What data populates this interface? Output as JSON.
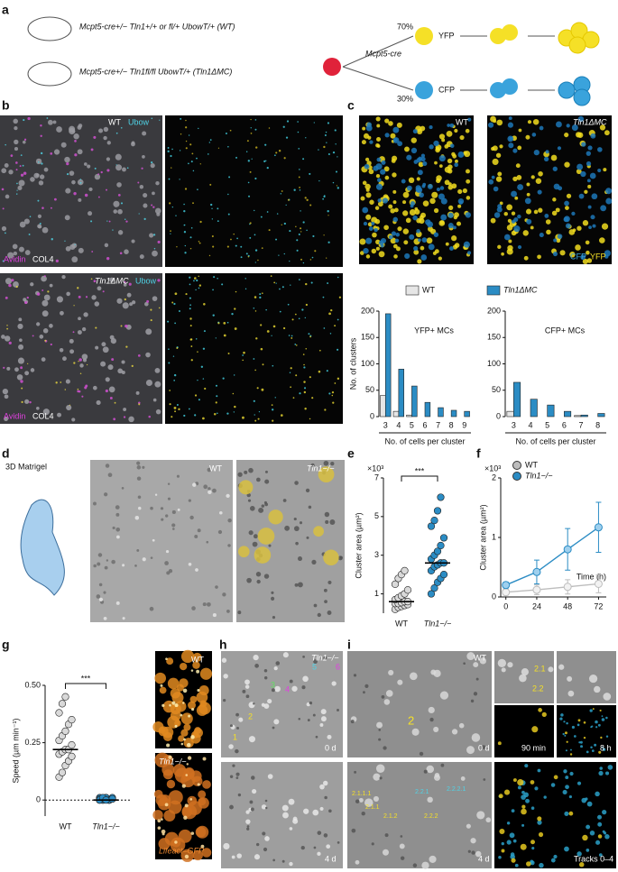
{
  "panel_labels": [
    "a",
    "b",
    "c",
    "d",
    "e",
    "f",
    "g",
    "h",
    "i"
  ],
  "a": {
    "genotype_wt": "Mcpt5-cre+/− Tln1+/+ or fl/+ UbowT/+ (WT)",
    "genotype_ko": "Mcpt5-cre+/− Tln1fl/fl UbowT/+ (Tln1ΔMC)",
    "driver": "Mcpt5-cre",
    "pct_yfp": "70%",
    "pct_cfp": "30%",
    "yfp": "YFP",
    "cfp": "CFP"
  },
  "b": {
    "wt_label": "WT",
    "ubow": "Ubow",
    "ko_label": "Tln1ΔMC",
    "avidin": "Avidin",
    "col4": "COL4"
  },
  "c": {
    "wt_label": "WT",
    "ko_label": "Tln1ΔMC",
    "cfp": "CFP",
    "yfp": "YFP"
  },
  "d": {
    "matrigel": "3D Matrigel",
    "wt_label": "WT",
    "ko_label": "Tln1−/−"
  },
  "g": {
    "wt_label": "WT",
    "ko_label": "Tln1−/−",
    "reporter": "Lifeact–GFP"
  },
  "h": {
    "ko_label": "Tln1−/−",
    "time_top": "0 d",
    "time_bottom": "4 d",
    "cell_labels": [
      "1",
      "2",
      "3",
      "4",
      "5",
      "6"
    ]
  },
  "i": {
    "wt_label": "WT",
    "cell": "2",
    "daughter_1": "2.1",
    "daughter_2": "2.2",
    "time_0": "0 d",
    "time_4": "4 d",
    "t90": "90 min",
    "t8": "8 h",
    "tracks": "Tracks 0–4 d",
    "lineage_labels": [
      "2.1.1.1",
      "2.1.1",
      "2.1.2",
      "2.2.1",
      "2.2.2",
      "2.2.2.1"
    ]
  },
  "chart_data": [
    {
      "type": "bar",
      "title": "YFP+ MCs",
      "y_label": "No. of clusters",
      "x_label": "No. of cells per cluster",
      "categories": [
        "3",
        "4",
        "5",
        "6",
        "7",
        "8",
        "9"
      ],
      "series": [
        {
          "name": "WT",
          "color": "#e6e6e6",
          "values": [
            40,
            10,
            3,
            0,
            0,
            0,
            0
          ]
        },
        {
          "name": "Tln1ΔMC",
          "color": "#2b8cc4",
          "values": [
            195,
            90,
            58,
            27,
            17,
            12,
            10
          ]
        }
      ],
      "ylim": [
        0,
        200
      ],
      "yticks": [
        0,
        50,
        100,
        150,
        200
      ]
    },
    {
      "type": "bar",
      "title": "CFP+ MCs",
      "x_label": "No. of cells per cluster",
      "categories": [
        "3",
        "4",
        "5",
        "6",
        "7",
        "8"
      ],
      "series": [
        {
          "name": "WT",
          "color": "#e6e6e6",
          "values": [
            10,
            0,
            0,
            0,
            2,
            0
          ]
        },
        {
          "name": "Tln1ΔMC",
          "color": "#2b8cc4",
          "values": [
            65,
            33,
            22,
            10,
            3,
            6
          ]
        }
      ],
      "ylim": [
        0,
        200
      ],
      "yticks": [
        0,
        50,
        100,
        150,
        200
      ]
    },
    {
      "type": "strip",
      "y_label": "Cluster area (µm²)",
      "multiplier": "×10³",
      "significance": "***",
      "categories": [
        "WT",
        "Tln1−/−"
      ],
      "series": [
        {
          "color": "#d9d9d9",
          "values": [
            0.2,
            0.3,
            0.35,
            0.4,
            0.45,
            0.5,
            0.5,
            0.55,
            0.6,
            0.6,
            0.7,
            0.8,
            0.9,
            1.0,
            1.2,
            1.5,
            1.8,
            2.0,
            2.2
          ]
        },
        {
          "color": "#2b8cc4",
          "values": [
            1.0,
            1.3,
            1.6,
            1.8,
            2.0,
            2.2,
            2.4,
            2.5,
            2.6,
            2.6,
            2.8,
            3.0,
            3.2,
            3.5,
            3.9,
            4.5,
            4.8,
            5.3,
            6.0
          ]
        }
      ],
      "medians": [
        0.6,
        2.6
      ],
      "ylim": [
        0,
        7
      ],
      "yticks": [
        1,
        3,
        5,
        7
      ]
    },
    {
      "type": "line",
      "y_label": "Cluster area (µm²)",
      "multiplier": "×10³",
      "x_label": "Time (h)",
      "x": [
        0,
        24,
        48,
        72
      ],
      "series": [
        {
          "name": "WT",
          "color": "#bdbdbd",
          "values": [
            0.08,
            0.12,
            0.17,
            0.22
          ],
          "errors": [
            0.05,
            0.08,
            0.12,
            0.15
          ]
        },
        {
          "name": "Tln1−/−",
          "color": "#2b8cc4",
          "values": [
            0.2,
            0.42,
            0.8,
            1.17
          ],
          "errors": [
            0.05,
            0.2,
            0.35,
            0.42
          ]
        }
      ],
      "xlim": [
        -4,
        78
      ],
      "xticks": [
        0,
        24,
        48,
        72
      ],
      "ylim": [
        0,
        2
      ],
      "yticks": [
        0,
        1,
        2
      ]
    },
    {
      "type": "strip",
      "y_label": "Speed (µm min⁻¹)",
      "significance": "***",
      "zero_line": true,
      "categories": [
        "WT",
        "Tln1−/−"
      ],
      "series": [
        {
          "color": "#d9d9d9",
          "values": [
            0.1,
            0.12,
            0.15,
            0.17,
            0.19,
            0.2,
            0.21,
            0.22,
            0.22,
            0.24,
            0.26,
            0.28,
            0.3,
            0.33,
            0.35,
            0.38,
            0.42,
            0.45
          ]
        },
        {
          "color": "#2b8cc4",
          "values": [
            0,
            0.005,
            0.01,
            0,
            0.005,
            0.01,
            0,
            0.005,
            0,
            0.01,
            0.005,
            0,
            0.01,
            0,
            0.005,
            0,
            0.01,
            0
          ]
        }
      ],
      "medians": [
        0.22,
        0
      ],
      "ylim": [
        -0.07,
        0.5
      ],
      "yticks": [
        0,
        0.25,
        {
          "value": 0.5,
          "label": "0.50"
        }
      ]
    }
  ]
}
